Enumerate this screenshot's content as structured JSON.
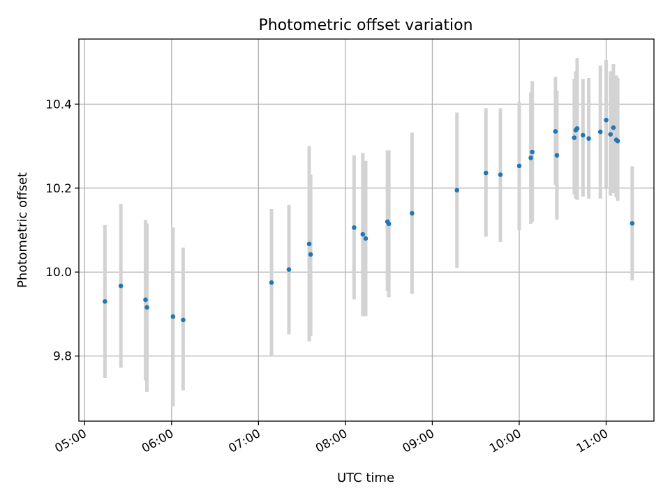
{
  "chart_data": {
    "type": "scatter",
    "title": "Photometric offset variation",
    "xlabel": "UTC time",
    "ylabel": "Photometric offset",
    "x_tick_labels": [
      "05:00",
      "06:00",
      "07:00",
      "08:00",
      "09:00",
      "10:00",
      "11:00"
    ],
    "y_tick_labels": [
      "9.8",
      "10.0",
      "10.2",
      "10.4"
    ],
    "xlim": [
      "04:56",
      "11:33"
    ],
    "ylim": [
      9.645,
      10.555
    ],
    "grid": true,
    "colors": {
      "point": "#1f77b4",
      "error_bar": "#d3d3d3"
    },
    "series": [
      {
        "x": [
          "05:14",
          "05:25",
          "05:42",
          "05:43",
          "06:01",
          "06:08",
          "07:09",
          "07:21",
          "07:35",
          "07:36",
          "08:06",
          "08:12",
          "08:14",
          "08:29",
          "08:30",
          "08:46",
          "09:17",
          "09:37",
          "09:47",
          "10:00",
          "10:08",
          "10:09",
          "10:25",
          "10:26",
          "10:38",
          "10:39",
          "10:40",
          "10:44",
          "10:48",
          "10:56",
          "11:00",
          "11:03",
          "11:05",
          "11:07",
          "11:08",
          "11:18"
        ],
        "y": [
          9.93,
          9.967,
          9.934,
          9.916,
          9.894,
          9.886,
          9.975,
          10.006,
          10.067,
          10.042,
          10.106,
          10.09,
          10.08,
          10.12,
          10.115,
          10.14,
          10.195,
          10.236,
          10.232,
          10.253,
          10.272,
          10.286,
          10.335,
          10.278,
          10.32,
          10.338,
          10.342,
          10.326,
          10.318,
          10.334,
          10.362,
          10.328,
          10.344,
          10.315,
          10.312,
          10.116
        ],
        "yerr_low": [
          9.748,
          9.772,
          9.742,
          9.715,
          9.68,
          9.718,
          9.8,
          9.852,
          9.835,
          9.848,
          9.935,
          9.895,
          9.895,
          9.955,
          9.94,
          9.948,
          10.01,
          10.084,
          10.072,
          10.1,
          10.115,
          10.12,
          10.208,
          10.125,
          10.185,
          10.175,
          10.172,
          10.18,
          10.175,
          10.175,
          10.2,
          10.182,
          10.188,
          10.178,
          10.17,
          9.98
        ],
        "yerr_high": [
          10.112,
          10.162,
          10.124,
          10.116,
          10.106,
          10.058,
          10.15,
          10.16,
          10.3,
          10.232,
          10.278,
          10.284,
          10.265,
          10.29,
          10.29,
          10.332,
          10.38,
          10.39,
          10.39,
          10.405,
          10.428,
          10.455,
          10.465,
          10.432,
          10.46,
          10.478,
          10.51,
          10.46,
          10.462,
          10.492,
          10.505,
          10.478,
          10.495,
          10.468,
          10.462,
          10.252
        ]
      }
    ]
  }
}
